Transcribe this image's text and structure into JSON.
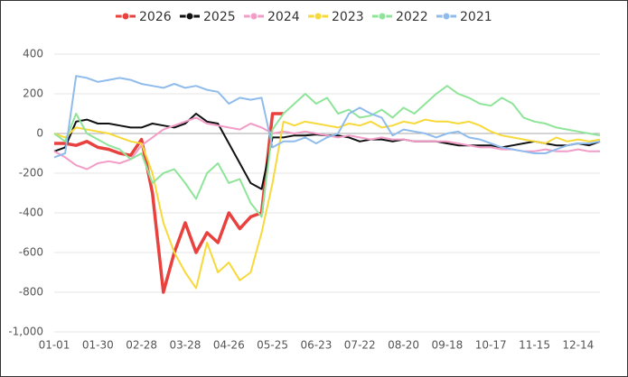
{
  "chart_data": {
    "type": "line",
    "categories": [
      "01-01",
      null,
      null,
      null,
      "01-30",
      null,
      null,
      null,
      "02-28",
      null,
      null,
      null,
      "03-28",
      null,
      null,
      null,
      "04-26",
      null,
      null,
      null,
      "05-25",
      null,
      null,
      null,
      "06-23",
      null,
      null,
      null,
      "07-22",
      null,
      null,
      null,
      "08-20",
      null,
      null,
      null,
      "09-18",
      null,
      null,
      null,
      "10-17",
      null,
      null,
      null,
      "11-15",
      null,
      null,
      null,
      "12-14",
      null,
      null
    ],
    "series": [
      {
        "name": "2026",
        "color": "#e8413e",
        "values": [
          -50,
          -50,
          -60,
          -40,
          -70,
          -80,
          -100,
          -110,
          -30,
          -300,
          -800,
          -600,
          -450,
          -600,
          -500,
          -550,
          -400,
          -480,
          -420,
          -400,
          100,
          100,
          null,
          null,
          null,
          null,
          null,
          null,
          null,
          null,
          null,
          null,
          null,
          null,
          null,
          null,
          null,
          null,
          null,
          null,
          null,
          null,
          null,
          null,
          null,
          null,
          null,
          null,
          null,
          null,
          null
        ]
      },
      {
        "name": "2025",
        "color": "#111111",
        "values": [
          -90,
          -70,
          60,
          70,
          50,
          50,
          40,
          30,
          30,
          50,
          40,
          30,
          50,
          100,
          60,
          50,
          -50,
          -150,
          -250,
          -280,
          -20,
          -20,
          -10,
          -10,
          -5,
          -10,
          -10,
          -20,
          -40,
          -30,
          -30,
          -40,
          -30,
          -40,
          -40,
          -40,
          -50,
          -60,
          -60,
          -60,
          -60,
          -70,
          -60,
          -50,
          -40,
          -50,
          -60,
          -60,
          -50,
          -60,
          -40
        ]
      },
      {
        "name": "2024",
        "color": "#f29cc8",
        "values": [
          -90,
          -120,
          -160,
          -180,
          -150,
          -140,
          -150,
          -130,
          -60,
          -20,
          20,
          40,
          60,
          80,
          50,
          40,
          30,
          20,
          50,
          30,
          0,
          10,
          0,
          10,
          0,
          -10,
          -20,
          -10,
          -20,
          -30,
          -20,
          -30,
          -30,
          -40,
          -40,
          -40,
          -40,
          -50,
          -60,
          -70,
          -70,
          -80,
          -80,
          -90,
          -90,
          -80,
          -90,
          -90,
          -80,
          -90,
          -90
        ]
      },
      {
        "name": "2023",
        "color": "#f7d93a",
        "values": [
          0,
          -20,
          30,
          20,
          10,
          0,
          -20,
          -40,
          -50,
          -200,
          -450,
          -600,
          -700,
          -780,
          -550,
          -700,
          -650,
          -740,
          -700,
          -500,
          -250,
          60,
          40,
          60,
          50,
          40,
          30,
          50,
          40,
          60,
          30,
          40,
          60,
          50,
          70,
          60,
          60,
          50,
          60,
          40,
          10,
          -10,
          -20,
          -30,
          -40,
          -50,
          -20,
          -40,
          -30,
          -40,
          -30
        ]
      },
      {
        "name": "2022",
        "color": "#8ee59a",
        "values": [
          0,
          -40,
          100,
          0,
          -30,
          -60,
          -80,
          -130,
          -100,
          -250,
          -200,
          -180,
          -250,
          -330,
          -200,
          -150,
          -250,
          -230,
          -350,
          -420,
          20,
          100,
          150,
          200,
          150,
          180,
          100,
          120,
          80,
          90,
          120,
          80,
          130,
          100,
          150,
          200,
          240,
          200,
          180,
          150,
          140,
          180,
          150,
          80,
          60,
          50,
          30,
          20,
          10,
          0,
          -10
        ]
      },
      {
        "name": "2021",
        "color": "#8fbcec",
        "values": [
          -120,
          -100,
          290,
          280,
          260,
          270,
          280,
          270,
          250,
          240,
          230,
          250,
          230,
          240,
          220,
          210,
          150,
          180,
          170,
          180,
          -70,
          -40,
          -40,
          -20,
          -50,
          -20,
          0,
          100,
          130,
          100,
          80,
          -10,
          20,
          10,
          0,
          -20,
          0,
          10,
          -20,
          -30,
          -50,
          -70,
          -80,
          -90,
          -100,
          -100,
          -80,
          -60,
          -50,
          -50,
          -40
        ]
      }
    ],
    "ylim": [
      -1000,
      400
    ],
    "yticks": [
      {
        "value": -1000,
        "label": "-1,000"
      },
      -800,
      -600,
      -400,
      -200,
      0,
      200,
      400
    ],
    "grid": true,
    "legend": "top"
  }
}
